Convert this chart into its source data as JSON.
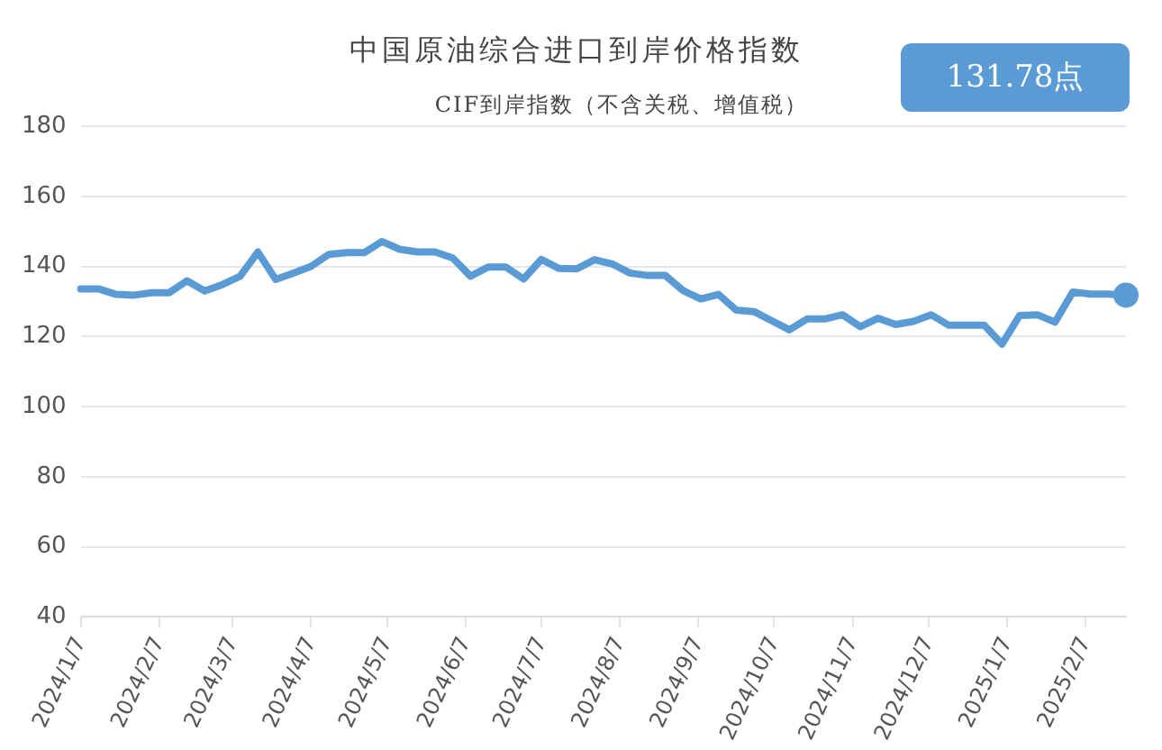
{
  "chart_data": {
    "type": "line",
    "title": "中国原油综合进口到岸价格指数",
    "subtitle": "CIF到岸指数（不含关税、增值税）",
    "annotations": [
      "131.78点"
    ],
    "x": [
      "2024-01-07",
      "2024-01-14",
      "2024-01-21",
      "2024-01-28",
      "2024-02-04",
      "2024-02-11",
      "2024-02-18",
      "2024-02-25",
      "2024-03-03",
      "2024-03-10",
      "2024-03-17",
      "2024-03-24",
      "2024-03-31",
      "2024-04-07",
      "2024-04-14",
      "2024-04-21",
      "2024-04-28",
      "2024-05-05",
      "2024-05-12",
      "2024-05-19",
      "2024-05-26",
      "2024-06-02",
      "2024-06-09",
      "2024-06-16",
      "2024-06-23",
      "2024-06-30",
      "2024-07-07",
      "2024-07-14",
      "2024-07-21",
      "2024-07-28",
      "2024-08-04",
      "2024-08-11",
      "2024-08-18",
      "2024-08-25",
      "2024-09-01",
      "2024-09-08",
      "2024-09-15",
      "2024-09-22",
      "2024-09-29",
      "2024-10-06",
      "2024-10-13",
      "2024-10-20",
      "2024-10-27",
      "2024-11-03",
      "2024-11-10",
      "2024-11-17",
      "2024-11-24",
      "2024-12-01",
      "2024-12-08",
      "2024-12-15",
      "2024-12-22",
      "2024-12-29",
      "2025-01-05",
      "2025-01-12",
      "2025-01-19",
      "2025-01-26",
      "2025-02-02",
      "2025-02-09",
      "2025-02-16",
      "2025-02-23"
    ],
    "series": [
      {
        "color": "#5b9bd5",
        "values": [
          133.6,
          133.6,
          132,
          131.8,
          132.5,
          132.5,
          135.9,
          133,
          134.8,
          137.2,
          144.1,
          136.3,
          138.1,
          140,
          143.4,
          143.9,
          143.9,
          147.1,
          144.9,
          144.1,
          144.1,
          142.4,
          137.2,
          139.8,
          139.8,
          136.4,
          142,
          139.4,
          139.3,
          141.9,
          140.7,
          138.1,
          137.4,
          137.4,
          133.1,
          130.7,
          132,
          127.5,
          127.1,
          124.5,
          121.9,
          125,
          125,
          126.2,
          122.8,
          125.2,
          123.4,
          124.3,
          126.2,
          123.2,
          123.2,
          123.2,
          117.8,
          126,
          126.2,
          124.1,
          132.7,
          132.1,
          132.1,
          131.8
        ]
      }
    ],
    "xlim": [
      "2024-01-07",
      "2025-02-23"
    ],
    "xticks": [
      {
        "value": "2024-01-07",
        "label": "2024/1/7"
      },
      {
        "value": "2024-02-07",
        "label": "2024/2/7"
      },
      {
        "value": "2024-03-07",
        "label": "2024/3/7"
      },
      {
        "value": "2024-04-07",
        "label": "2024/4/7"
      },
      {
        "value": "2024-05-07",
        "label": "2024/5/7"
      },
      {
        "value": "2024-06-07",
        "label": "2024/6/7"
      },
      {
        "value": "2024-07-07",
        "label": "2024/7/7"
      },
      {
        "value": "2024-08-07",
        "label": "2024/8/7"
      },
      {
        "value": "2024-09-07",
        "label": "2024/9/7"
      },
      {
        "value": "2024-10-07",
        "label": "2024/10/7"
      },
      {
        "value": "2024-11-07",
        "label": "2024/11/7"
      },
      {
        "value": "2024-12-07",
        "label": "2024/12/7"
      },
      {
        "value": "2025-01-07",
        "label": "2025/1/7"
      },
      {
        "value": "2025-02-07",
        "label": "2025/2/7"
      }
    ],
    "ylim": [
      40,
      180
    ],
    "yticks": [
      40,
      60,
      80,
      100,
      120,
      140,
      160,
      180
    ],
    "grid": "y",
    "legend": false,
    "line_style": "solid"
  }
}
